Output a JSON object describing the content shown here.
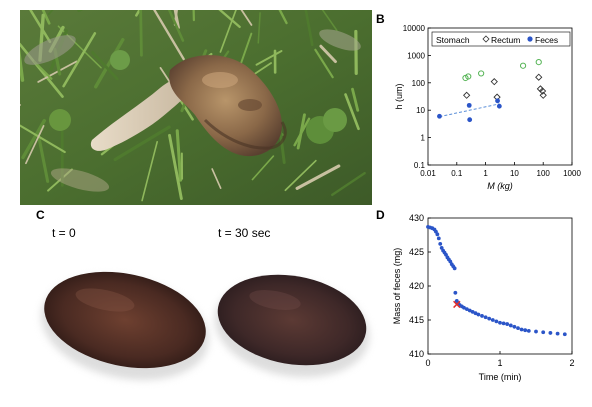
{
  "panels": {
    "A": {
      "letter": "A"
    },
    "B": {
      "letter": "B"
    },
    "C": {
      "letter": "C",
      "labels": [
        "t = 0",
        "t = 30 sec"
      ]
    },
    "D": {
      "letter": "D"
    }
  },
  "chart_data": [
    {
      "id": "B",
      "type": "scatter",
      "title": "",
      "xlabel": "M (kg)",
      "ylabel": "h (um)",
      "xscale": "log",
      "yscale": "log",
      "xlim": [
        0.01,
        1000
      ],
      "ylim": [
        0.1,
        10000
      ],
      "xticks": [
        "0.01",
        "0.1",
        "1",
        "10",
        "100",
        "1000"
      ],
      "yticks": [
        "0.1",
        "1",
        "10",
        "100",
        "1000",
        "10000"
      ],
      "grid": false,
      "legend": "top",
      "series": [
        {
          "name": "Stomach",
          "marker": "open-circle",
          "color": "#55b455",
          "points": [
            [
              0.2,
              150
            ],
            [
              0.25,
              170
            ],
            [
              0.7,
              220
            ],
            [
              20,
              420
            ],
            [
              70,
              570
            ]
          ]
        },
        {
          "name": "Rectum",
          "marker": "open-diamond",
          "color": "#333333",
          "points": [
            [
              0.22,
              35
            ],
            [
              2.0,
              110
            ],
            [
              2.5,
              30
            ],
            [
              70,
              160
            ],
            [
              80,
              60
            ],
            [
              95,
              50
            ],
            [
              100,
              35
            ]
          ]
        },
        {
          "name": "Feces",
          "marker": "filled-circle",
          "color": "#2b55c8",
          "points": [
            [
              0.025,
              6
            ],
            [
              0.27,
              15
            ],
            [
              0.28,
              4.5
            ],
            [
              2.6,
              22
            ],
            [
              3.0,
              14
            ]
          ]
        }
      ],
      "trendline": {
        "series": "Feces",
        "style": "dashed",
        "color": "#5b8fd8",
        "from": [
          0.025,
          5.8
        ],
        "to": [
          3.0,
          17
        ]
      }
    },
    {
      "id": "D",
      "type": "scatter",
      "title": "",
      "xlabel": "Time (min)",
      "ylabel": "Mass of feces (mg)",
      "xlim": [
        0,
        2
      ],
      "ylim": [
        410,
        430
      ],
      "xticks": [
        "0",
        "1",
        "2"
      ],
      "yticks": [
        "410",
        "415",
        "420",
        "425",
        "430"
      ],
      "grid": false,
      "series": [
        {
          "name": "",
          "color": "#2b55c8",
          "points": [
            [
              0.0,
              428.7
            ],
            [
              0.03,
              428.6
            ],
            [
              0.06,
              428.5
            ],
            [
              0.09,
              428.3
            ],
            [
              0.11,
              428.0
            ],
            [
              0.13,
              427.6
            ],
            [
              0.15,
              427.0
            ],
            [
              0.17,
              426.2
            ],
            [
              0.19,
              425.6
            ],
            [
              0.21,
              425.2
            ],
            [
              0.23,
              424.9
            ],
            [
              0.25,
              424.6
            ],
            [
              0.27,
              424.2
            ],
            [
              0.29,
              423.9
            ],
            [
              0.31,
              423.6
            ],
            [
              0.33,
              423.2
            ],
            [
              0.35,
              422.9
            ],
            [
              0.37,
              422.6
            ],
            [
              0.38,
              419.0
            ],
            [
              0.4,
              417.8
            ],
            [
              0.42,
              417.5
            ],
            [
              0.44,
              417.2
            ],
            [
              0.47,
              417.0
            ],
            [
              0.5,
              416.8
            ],
            [
              0.54,
              416.6
            ],
            [
              0.58,
              416.4
            ],
            [
              0.62,
              416.2
            ],
            [
              0.66,
              416.0
            ],
            [
              0.7,
              415.8
            ],
            [
              0.75,
              415.6
            ],
            [
              0.8,
              415.4
            ],
            [
              0.85,
              415.2
            ],
            [
              0.9,
              415.0
            ],
            [
              0.95,
              414.8
            ],
            [
              1.0,
              414.6
            ],
            [
              1.05,
              414.5
            ],
            [
              1.1,
              414.4
            ],
            [
              1.15,
              414.2
            ],
            [
              1.2,
              414.0
            ],
            [
              1.25,
              413.8
            ],
            [
              1.3,
              413.6
            ],
            [
              1.35,
              413.5
            ],
            [
              1.4,
              413.4
            ],
            [
              1.5,
              413.3
            ],
            [
              1.6,
              413.2
            ],
            [
              1.7,
              413.1
            ],
            [
              1.8,
              413.0
            ],
            [
              1.9,
              412.9
            ]
          ]
        }
      ],
      "markers": [
        {
          "shape": "x",
          "color": "#e03030",
          "x": 0.4,
          "y": 417.3
        }
      ]
    }
  ]
}
